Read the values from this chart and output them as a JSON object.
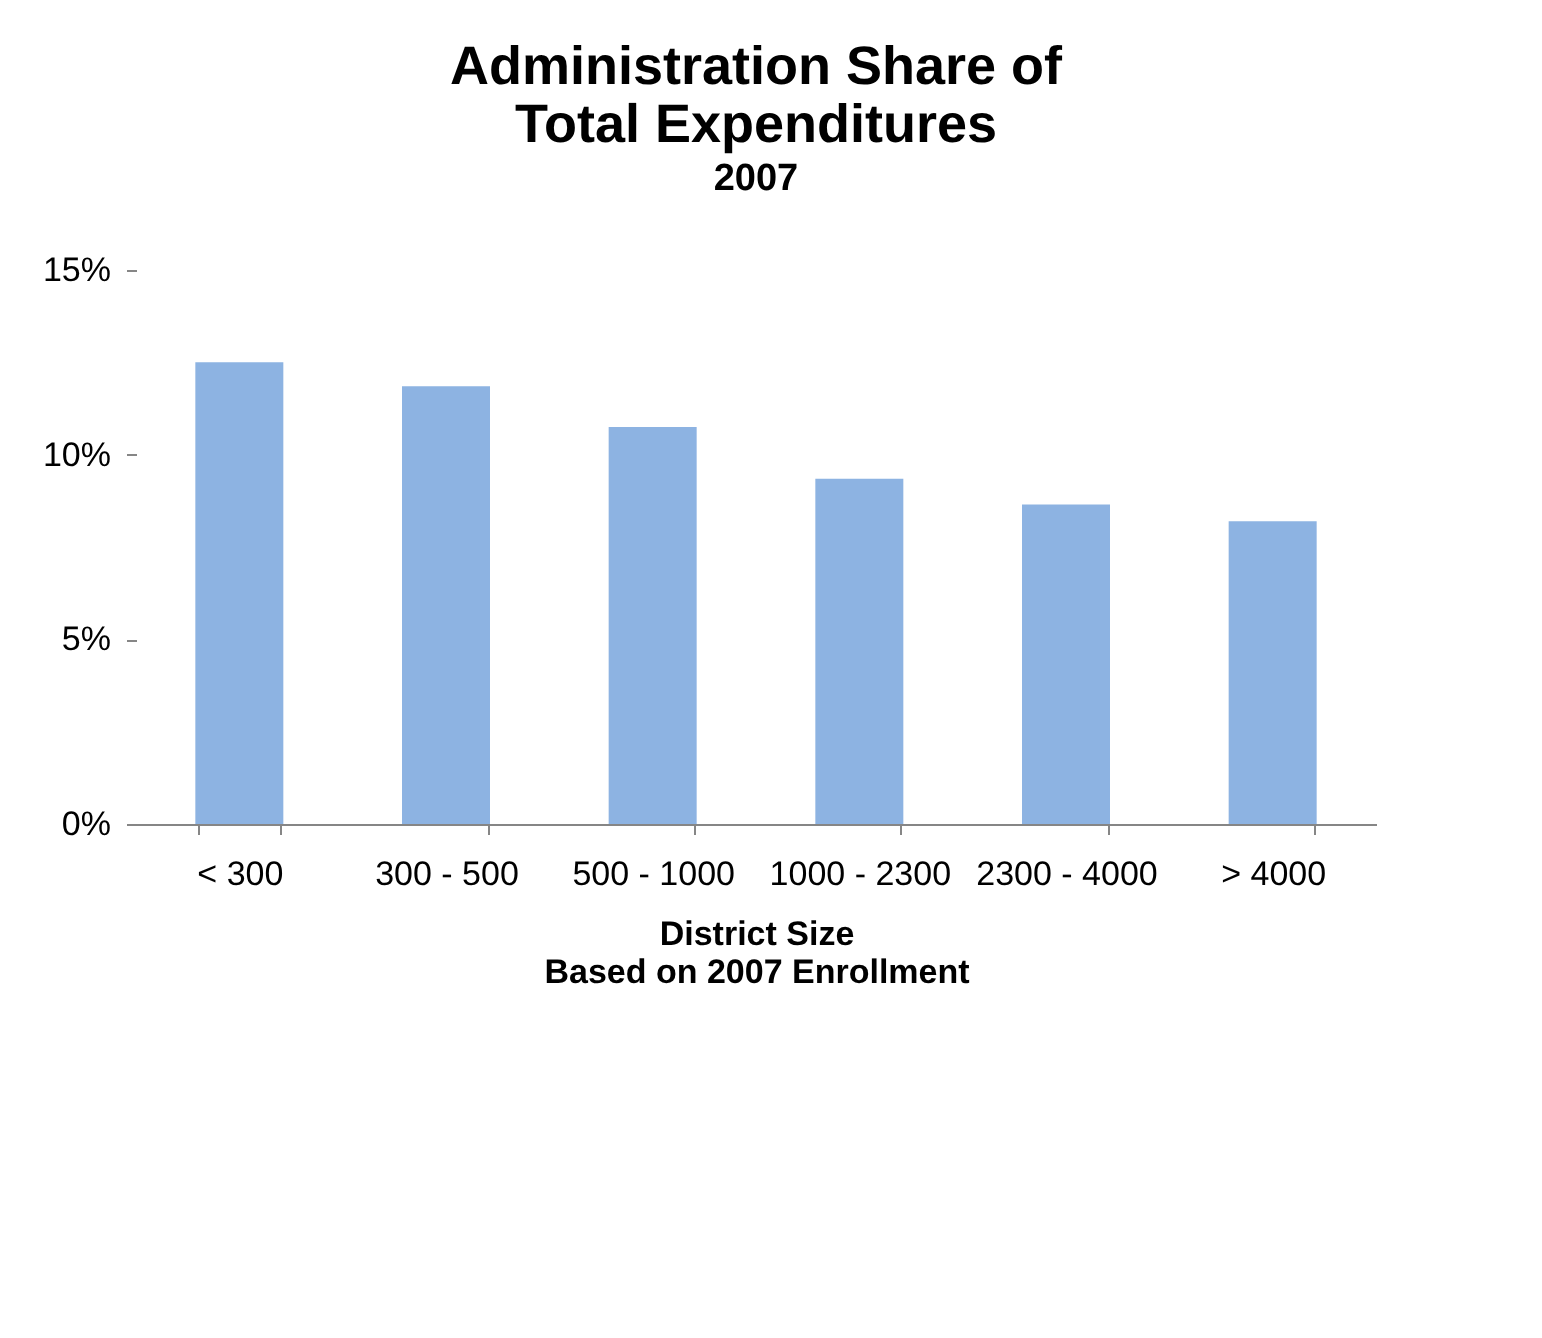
{
  "chart_data": {
    "type": "bar",
    "title": "Administration Share of Total Expenditures",
    "subtitle": "2007",
    "xlabel": "District Size Based on 2007 Enrollment",
    "categories": [
      "< 300",
      "300 - 500",
      "500 - 1000",
      "1000 - 2300",
      "2300 - 4000",
      "> 4000"
    ],
    "values": [
      12.5,
      11.85,
      10.75,
      9.35,
      8.65,
      8.2
    ],
    "color": "#8db3e2",
    "ylim": [
      0,
      15
    ],
    "yticks": [
      {
        "value": 0,
        "label": "0%"
      },
      {
        "value": 5,
        "label": "5%"
      },
      {
        "value": 10,
        "label": "10%"
      },
      {
        "value": 15,
        "label": "15%"
      }
    ],
    "grid": false
  }
}
